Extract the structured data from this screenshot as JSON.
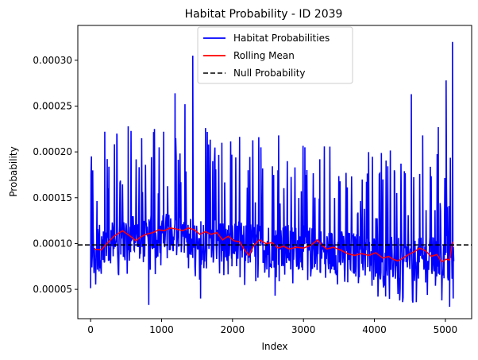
{
  "chart_data": {
    "type": "line",
    "title": "Habitat Probability - ID 2039",
    "xlabel": "Index",
    "ylabel": "Probability",
    "xlim": [
      -180,
      5370
    ],
    "ylim": [
      1.8e-05,
      0.000338
    ],
    "xticks": [
      0,
      1000,
      2000,
      3000,
      4000,
      5000
    ],
    "yticks": [
      5e-05,
      0.0001,
      0.00015,
      0.0002,
      0.00025,
      0.0003
    ],
    "ytick_labels": [
      "0.00005",
      "0.00010",
      "0.00015",
      "0.00020",
      "0.00025",
      "0.00030"
    ],
    "legend_position": "upper center",
    "grid": false,
    "series": [
      {
        "name": "Habitat Probabilities",
        "color": "#0000ff",
        "style": "solid",
        "x_start": 0,
        "x_end": 5120,
        "base_mean_curve": {
          "x": [
            0,
            500,
            1000,
            1500,
            2000,
            2500,
            3000,
            3500,
            4000,
            4500,
            5000,
            5120
          ],
          "y": [
            9.5e-05,
            0.000105,
            0.000108,
            0.000105,
            0.0001,
            9.8e-05,
            9.5e-05,
            9e-05,
            8.5e-05,
            8e-05,
            8.5e-05,
            9e-05
          ]
        },
        "peaks": [
          {
            "x": 200,
            "y": 0.000222
          },
          {
            "x": 370,
            "y": 0.00022
          },
          {
            "x": 530,
            "y": 0.000228
          },
          {
            "x": 720,
            "y": 0.000215
          },
          {
            "x": 900,
            "y": 0.000225
          },
          {
            "x": 1030,
            "y": 0.000222
          },
          {
            "x": 1190,
            "y": 0.000264
          },
          {
            "x": 1330,
            "y": 0.000252
          },
          {
            "x": 1440,
            "y": 0.000305
          },
          {
            "x": 1620,
            "y": 0.000226
          },
          {
            "x": 1850,
            "y": 0.00021
          },
          {
            "x": 1990,
            "y": 0.000197
          },
          {
            "x": 2220,
            "y": 0.00018
          },
          {
            "x": 2400,
            "y": 0.000205
          },
          {
            "x": 2650,
            "y": 0.000218
          },
          {
            "x": 3020,
            "y": 0.000205
          },
          {
            "x": 3230,
            "y": 0.000192
          },
          {
            "x": 4120,
            "y": 0.00017
          },
          {
            "x": 4280,
            "y": 0.00018
          },
          {
            "x": 4520,
            "y": 0.000263
          },
          {
            "x": 4680,
            "y": 0.000218
          },
          {
            "x": 4900,
            "y": 0.000227
          },
          {
            "x": 5010,
            "y": 0.000278
          },
          {
            "x": 5100,
            "y": 0.00032
          }
        ],
        "troughs": [
          {
            "x": 820,
            "y": 3.3e-05
          },
          {
            "x": 1550,
            "y": 4e-05
          },
          {
            "x": 2600,
            "y": 4.3e-05
          },
          {
            "x": 4590,
            "y": 3.6e-05
          },
          {
            "x": 4950,
            "y": 3.8e-05
          },
          {
            "x": 5060,
            "y": 3.1e-05
          },
          {
            "x": 5110,
            "y": 4e-05
          }
        ]
      },
      {
        "name": "Rolling Mean",
        "color": "#ff0000",
        "style": "solid",
        "x": [
          50,
          150,
          230,
          330,
          450,
          560,
          640,
          700,
          780,
          880,
          960,
          1040,
          1120,
          1200,
          1300,
          1380,
          1460,
          1540,
          1620,
          1700,
          1780,
          1860,
          1940,
          2020,
          2100,
          2170,
          2230,
          2300,
          2380,
          2470,
          2560,
          2640,
          2720,
          2800,
          2900,
          3000,
          3100,
          3200,
          3260,
          3330,
          3420,
          3520,
          3620,
          3720,
          3820,
          3920,
          4020,
          4120,
          4200,
          4260,
          4330,
          4400,
          4480,
          4560,
          4640,
          4720,
          4800,
          4880,
          4950,
          5010,
          5060,
          5100
        ],
        "y": [
          9.4e-05,
          9.3e-05,
          0.0001,
          0.000108,
          0.000114,
          0.000108,
          0.000103,
          0.000107,
          0.00011,
          0.000112,
          0.000115,
          0.000114,
          0.000117,
          0.000116,
          0.000114,
          0.000117,
          0.000115,
          0.00011,
          0.000113,
          0.00011,
          0.000112,
          0.000104,
          0.000108,
          0.000103,
          0.000102,
          9.3e-05,
          8.7e-05,
          9.8e-05,
          0.000104,
          0.0001,
          0.000101,
          9.5e-05,
          9.7e-05,
          9.4e-05,
          9.6e-05,
          9.5e-05,
          9.8e-05,
          0.000104,
          9.8e-05,
          9.4e-05,
          9.6e-05,
          9.3e-05,
          8.9e-05,
          8.7e-05,
          8.9e-05,
          8.7e-05,
          9e-05,
          8.4e-05,
          8.6e-05,
          8.3e-05,
          8.1e-05,
          8.4e-05,
          8.8e-05,
          9.1e-05,
          9.5e-05,
          9.2e-05,
          8.6e-05,
          8.8e-05,
          8e-05,
          8.3e-05,
          8.2e-05,
          0.000102
        ]
      },
      {
        "name": "Null Probability",
        "color": "#000000",
        "style": "dashed",
        "y_constant": 9.85e-05
      }
    ]
  }
}
